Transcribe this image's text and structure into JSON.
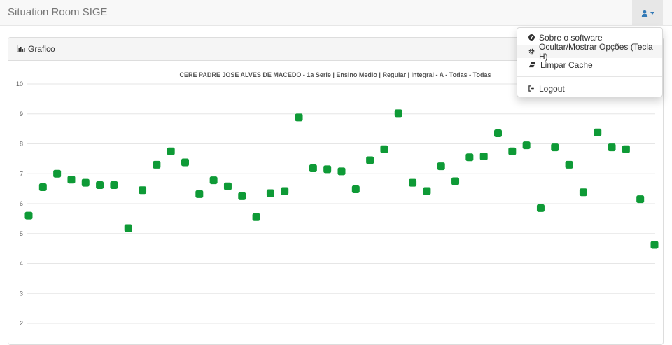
{
  "navbar": {
    "brand": "Situation Room SIGE"
  },
  "panel": {
    "title": "Grafico"
  },
  "menu": {
    "items": [
      {
        "label": "Sobre o software",
        "icon": "question-circle-icon"
      },
      {
        "label": "Ocultar/Mostrar Opções (Tecla H)",
        "icon": "cog-icon"
      },
      {
        "label": "Limpar Cache",
        "icon": "eraser-icon"
      },
      {
        "label": "Logout",
        "icon": "logout-icon"
      }
    ]
  },
  "colors": {
    "point": "#0e9a36",
    "accent": "#337ab7"
  },
  "chart_data": {
    "type": "scatter",
    "title": "CERE PADRE JOSE ALVES DE MACEDO - 1a Serie | Ensino Medio | Regular | Integral - A - Todas - Todas",
    "ylim": [
      2,
      10
    ],
    "yticks": [
      10,
      9,
      8,
      7,
      6,
      5,
      4,
      3,
      2
    ],
    "grid": true,
    "values": [
      5.6,
      6.55,
      7.0,
      6.8,
      6.7,
      6.62,
      6.62,
      5.18,
      6.45,
      7.3,
      7.75,
      7.38,
      6.32,
      6.78,
      6.58,
      6.25,
      5.55,
      6.35,
      6.42,
      8.88,
      7.18,
      7.15,
      7.08,
      6.48,
      7.45,
      7.82,
      9.02,
      6.7,
      6.42,
      7.25,
      6.75,
      7.55,
      7.58,
      8.35,
      7.75,
      7.95,
      5.85,
      7.88,
      7.3,
      6.38,
      8.38,
      7.88,
      7.82,
      6.15,
      4.62
    ]
  }
}
